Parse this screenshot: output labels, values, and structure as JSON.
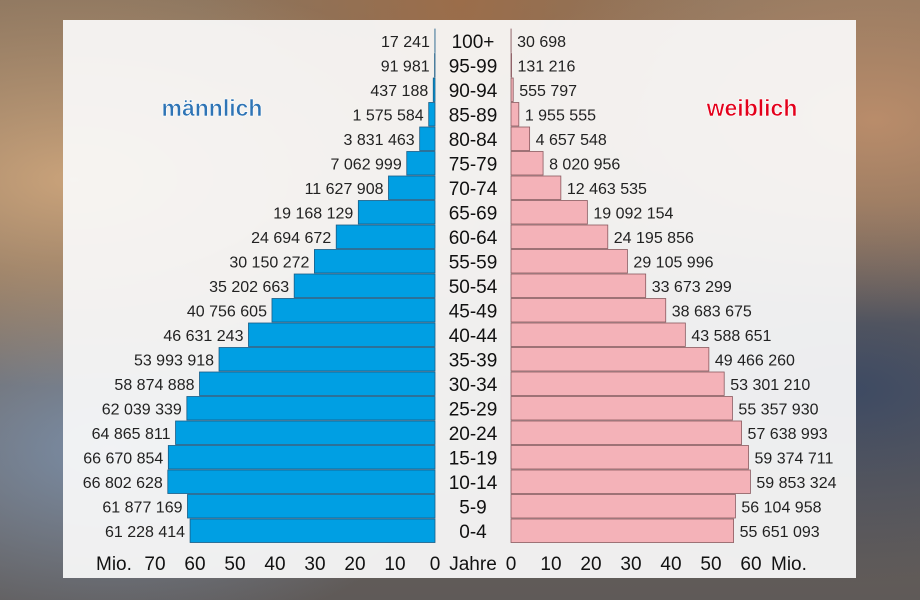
{
  "chart_data": {
    "type": "bar",
    "subtype": "population-pyramid",
    "center_label": "Jahre",
    "unit_left": "Mio.",
    "unit_right": "Mio.",
    "left_label": "männlich",
    "right_label": "weiblich",
    "left_color": "#009fe3",
    "right_color": "#f4b2b8",
    "left_label_color": "#2e74b5",
    "right_label_color": "#e3001b",
    "xlim": [
      0,
      70
    ],
    "left_ticks": [
      "70",
      "60",
      "50",
      "40",
      "30",
      "20",
      "10",
      "0"
    ],
    "right_ticks": [
      "0",
      "10",
      "20",
      "30",
      "40",
      "50",
      "60"
    ],
    "age_groups": [
      "100+",
      "95-99",
      "90-94",
      "85-89",
      "80-84",
      "75-79",
      "70-74",
      "65-69",
      "60-64",
      "55-59",
      "50-54",
      "45-49",
      "40-44",
      "35-39",
      "30-34",
      "25-29",
      "20-24",
      "15-19",
      "10-14",
      "5-9",
      "0-4"
    ],
    "series": [
      {
        "name": "männlich",
        "values": [
          17241,
          91981,
          437188,
          1575584,
          3831463,
          7062999,
          11627908,
          19168129,
          24694672,
          30150272,
          35202663,
          40756605,
          46631243,
          53993918,
          58874888,
          62039339,
          64865811,
          66670854,
          66802628,
          61877169,
          61228414
        ],
        "labels": [
          "17 241",
          "91 981",
          "437 188",
          "1 575 584",
          "3 831 463",
          "7 062 999",
          "11 627 908",
          "19 168 129",
          "24 694 672",
          "30 150 272",
          "35 202 663",
          "40 756 605",
          "46 631 243",
          "53 993 918",
          "58 874 888",
          "62 039 339",
          "64 865 811",
          "66 670 854",
          "66 802 628",
          "61 877 169",
          "61 228 414"
        ]
      },
      {
        "name": "weiblich",
        "values": [
          30698,
          131216,
          555797,
          1955555,
          4657548,
          8020956,
          12463535,
          19092154,
          24195856,
          29105996,
          33673299,
          38683675,
          43588651,
          49466260,
          53301210,
          55357930,
          57638993,
          59374711,
          59853324,
          56104958,
          55651093
        ],
        "labels": [
          "30 698",
          "131 216",
          "555 797",
          "1 955 555",
          "4 657 548",
          "8 020 956",
          "12 463 535",
          "19 092 154",
          "24 195 856",
          "29 105 996",
          "33 673 299",
          "38 683 675",
          "43 588 651",
          "49 466 260",
          "53 301 210",
          "55 357 930",
          "57 638 993",
          "59 374 711",
          "59 853 324",
          "56 104 958",
          "55 651 093"
        ]
      }
    ]
  }
}
